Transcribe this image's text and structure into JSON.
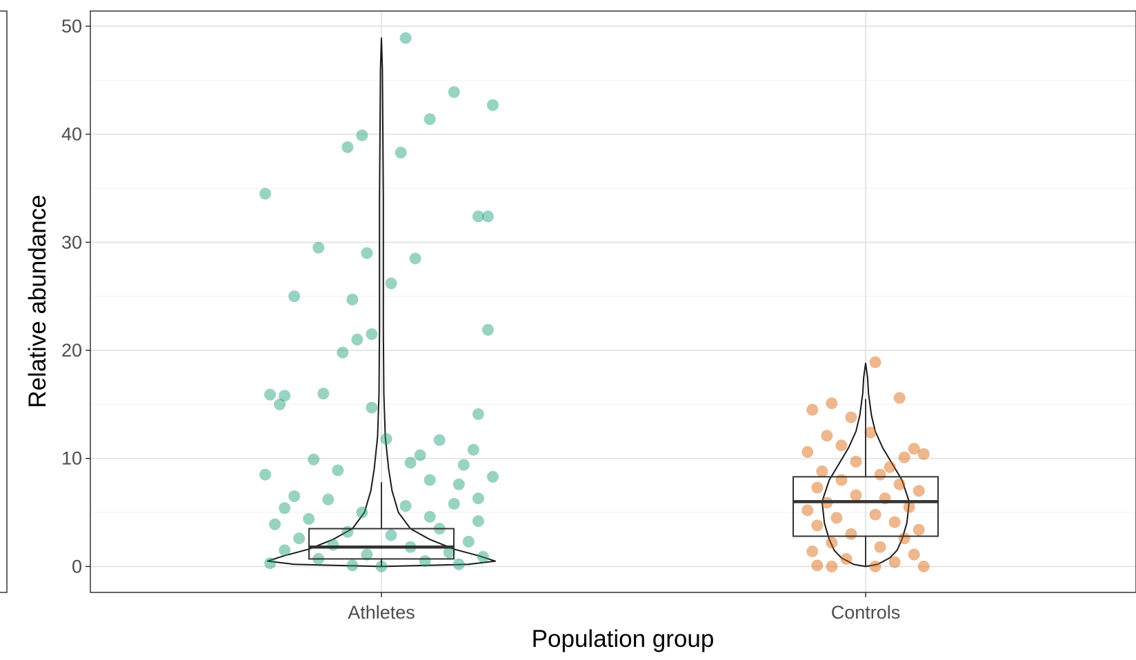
{
  "chart_data": {
    "type": "violin",
    "xlabel": "Population group",
    "ylabel": "Relative abundance",
    "categories": [
      "Athletes",
      "Controls"
    ],
    "ylim": [
      -2.4,
      51.4
    ],
    "yticks": [
      0,
      10,
      20,
      30,
      40,
      50
    ],
    "grid": true,
    "legend": "none",
    "series": [
      {
        "category": "Athletes",
        "color": "#1b9e77",
        "box": {
          "q1": 0.7,
          "median": 1.8,
          "q3": 3.5,
          "whisker_low": 0.0,
          "whisker_high": 7.8
        },
        "violin_max": 48.9,
        "points": [
          [
            0.05,
            48.9
          ],
          [
            0.15,
            43.9
          ],
          [
            0.23,
            42.7
          ],
          [
            0.1,
            41.4
          ],
          [
            -0.04,
            39.9
          ],
          [
            -0.07,
            38.8
          ],
          [
            0.04,
            38.3
          ],
          [
            -0.24,
            34.5
          ],
          [
            0.2,
            32.4
          ],
          [
            0.22,
            32.4
          ],
          [
            -0.13,
            29.5
          ],
          [
            -0.03,
            29.0
          ],
          [
            0.07,
            28.5
          ],
          [
            0.02,
            26.2
          ],
          [
            -0.18,
            25.0
          ],
          [
            -0.06,
            24.7
          ],
          [
            0.22,
            21.9
          ],
          [
            -0.02,
            21.5
          ],
          [
            -0.05,
            21.0
          ],
          [
            -0.08,
            19.8
          ],
          [
            -0.23,
            15.9
          ],
          [
            -0.2,
            15.8
          ],
          [
            -0.12,
            16.0
          ],
          [
            -0.21,
            15.0
          ],
          [
            -0.02,
            14.7
          ],
          [
            0.2,
            14.1
          ],
          [
            0.01,
            11.8
          ],
          [
            0.12,
            11.7
          ],
          [
            0.19,
            10.8
          ],
          [
            0.08,
            10.3
          ],
          [
            -0.14,
            9.9
          ],
          [
            0.06,
            9.6
          ],
          [
            0.17,
            9.4
          ],
          [
            -0.09,
            8.9
          ],
          [
            -0.24,
            8.5
          ],
          [
            0.23,
            8.3
          ],
          [
            0.1,
            8.0
          ],
          [
            0.16,
            7.6
          ],
          [
            -0.18,
            6.5
          ],
          [
            0.2,
            6.3
          ],
          [
            -0.11,
            6.2
          ],
          [
            0.15,
            5.8
          ],
          [
            -0.2,
            5.4
          ],
          [
            0.05,
            5.6
          ],
          [
            -0.04,
            5.0
          ],
          [
            0.1,
            4.6
          ],
          [
            -0.15,
            4.4
          ],
          [
            0.2,
            4.2
          ],
          [
            -0.22,
            3.9
          ],
          [
            0.12,
            3.5
          ],
          [
            -0.07,
            3.2
          ],
          [
            0.02,
            2.9
          ],
          [
            -0.17,
            2.6
          ],
          [
            0.18,
            2.3
          ],
          [
            -0.1,
            2.0
          ],
          [
            0.06,
            1.8
          ],
          [
            -0.2,
            1.5
          ],
          [
            0.14,
            1.3
          ],
          [
            -0.03,
            1.1
          ],
          [
            0.21,
            0.9
          ],
          [
            -0.13,
            0.7
          ],
          [
            0.09,
            0.5
          ],
          [
            -0.23,
            0.3
          ],
          [
            0.16,
            0.2
          ],
          [
            -0.06,
            0.1
          ],
          [
            0.0,
            0.0
          ]
        ]
      },
      {
        "category": "Controls",
        "color": "#d95f02",
        "box": {
          "q1": 2.8,
          "median": 6.0,
          "q3": 8.3,
          "whisker_low": 0.0,
          "whisker_high": 15.5
        },
        "violin_max": 18.8,
        "points": [
          [
            0.02,
            18.9
          ],
          [
            0.07,
            15.6
          ],
          [
            -0.07,
            15.1
          ],
          [
            -0.11,
            14.5
          ],
          [
            -0.03,
            13.8
          ],
          [
            0.01,
            12.4
          ],
          [
            -0.08,
            12.1
          ],
          [
            -0.05,
            11.2
          ],
          [
            0.1,
            10.9
          ],
          [
            -0.12,
            10.6
          ],
          [
            0.12,
            10.4
          ],
          [
            0.08,
            10.1
          ],
          [
            -0.02,
            9.7
          ],
          [
            0.05,
            9.2
          ],
          [
            -0.09,
            8.8
          ],
          [
            0.03,
            8.5
          ],
          [
            -0.05,
            8.0
          ],
          [
            0.07,
            7.6
          ],
          [
            -0.1,
            7.3
          ],
          [
            0.11,
            7.0
          ],
          [
            -0.02,
            6.6
          ],
          [
            0.04,
            6.3
          ],
          [
            -0.08,
            5.9
          ],
          [
            0.09,
            5.5
          ],
          [
            -0.12,
            5.2
          ],
          [
            0.02,
            4.8
          ],
          [
            -0.06,
            4.5
          ],
          [
            0.06,
            4.1
          ],
          [
            -0.1,
            3.8
          ],
          [
            0.11,
            3.4
          ],
          [
            -0.03,
            3.0
          ],
          [
            0.08,
            2.6
          ],
          [
            -0.07,
            2.2
          ],
          [
            0.03,
            1.8
          ],
          [
            -0.11,
            1.4
          ],
          [
            0.1,
            1.1
          ],
          [
            -0.04,
            0.7
          ],
          [
            0.06,
            0.4
          ],
          [
            -0.1,
            0.1
          ],
          [
            0.12,
            0.0
          ],
          [
            -0.07,
            0.0
          ],
          [
            0.02,
            0.0
          ]
        ]
      }
    ]
  }
}
